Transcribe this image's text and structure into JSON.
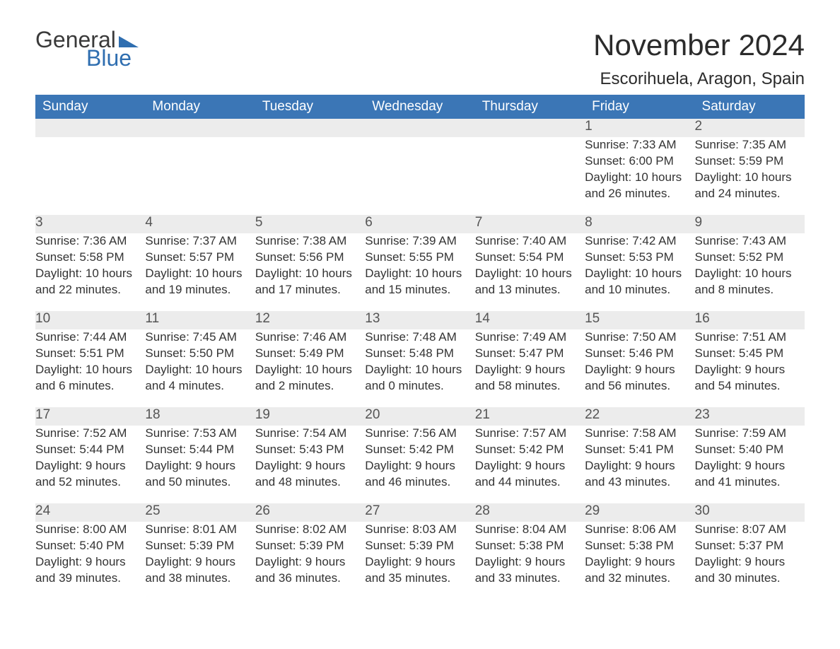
{
  "brand": {
    "word1": "General",
    "word2": "Blue"
  },
  "title": "November 2024",
  "location": "Escorihuela, Aragon, Spain",
  "colors": {
    "header_bg": "#3b76b6",
    "header_text": "#ffffff",
    "daynum_bg": "#ececec",
    "text": "#333333",
    "brand_blue": "#2f6eb0"
  },
  "typography": {
    "title_fontsize_pt": 32,
    "location_fontsize_pt": 18,
    "header_fontsize_pt": 14,
    "body_fontsize_pt": 13
  },
  "weekdays": [
    "Sunday",
    "Monday",
    "Tuesday",
    "Wednesday",
    "Thursday",
    "Friday",
    "Saturday"
  ],
  "weeks": [
    [
      null,
      null,
      null,
      null,
      null,
      {
        "day": "1",
        "sunrise": "Sunrise: 7:33 AM",
        "sunset": "Sunset: 6:00 PM",
        "daylight1": "Daylight: 10 hours",
        "daylight2": "and 26 minutes."
      },
      {
        "day": "2",
        "sunrise": "Sunrise: 7:35 AM",
        "sunset": "Sunset: 5:59 PM",
        "daylight1": "Daylight: 10 hours",
        "daylight2": "and 24 minutes."
      }
    ],
    [
      {
        "day": "3",
        "sunrise": "Sunrise: 7:36 AM",
        "sunset": "Sunset: 5:58 PM",
        "daylight1": "Daylight: 10 hours",
        "daylight2": "and 22 minutes."
      },
      {
        "day": "4",
        "sunrise": "Sunrise: 7:37 AM",
        "sunset": "Sunset: 5:57 PM",
        "daylight1": "Daylight: 10 hours",
        "daylight2": "and 19 minutes."
      },
      {
        "day": "5",
        "sunrise": "Sunrise: 7:38 AM",
        "sunset": "Sunset: 5:56 PM",
        "daylight1": "Daylight: 10 hours",
        "daylight2": "and 17 minutes."
      },
      {
        "day": "6",
        "sunrise": "Sunrise: 7:39 AM",
        "sunset": "Sunset: 5:55 PM",
        "daylight1": "Daylight: 10 hours",
        "daylight2": "and 15 minutes."
      },
      {
        "day": "7",
        "sunrise": "Sunrise: 7:40 AM",
        "sunset": "Sunset: 5:54 PM",
        "daylight1": "Daylight: 10 hours",
        "daylight2": "and 13 minutes."
      },
      {
        "day": "8",
        "sunrise": "Sunrise: 7:42 AM",
        "sunset": "Sunset: 5:53 PM",
        "daylight1": "Daylight: 10 hours",
        "daylight2": "and 10 minutes."
      },
      {
        "day": "9",
        "sunrise": "Sunrise: 7:43 AM",
        "sunset": "Sunset: 5:52 PM",
        "daylight1": "Daylight: 10 hours",
        "daylight2": "and 8 minutes."
      }
    ],
    [
      {
        "day": "10",
        "sunrise": "Sunrise: 7:44 AM",
        "sunset": "Sunset: 5:51 PM",
        "daylight1": "Daylight: 10 hours",
        "daylight2": "and 6 minutes."
      },
      {
        "day": "11",
        "sunrise": "Sunrise: 7:45 AM",
        "sunset": "Sunset: 5:50 PM",
        "daylight1": "Daylight: 10 hours",
        "daylight2": "and 4 minutes."
      },
      {
        "day": "12",
        "sunrise": "Sunrise: 7:46 AM",
        "sunset": "Sunset: 5:49 PM",
        "daylight1": "Daylight: 10 hours",
        "daylight2": "and 2 minutes."
      },
      {
        "day": "13",
        "sunrise": "Sunrise: 7:48 AM",
        "sunset": "Sunset: 5:48 PM",
        "daylight1": "Daylight: 10 hours",
        "daylight2": "and 0 minutes."
      },
      {
        "day": "14",
        "sunrise": "Sunrise: 7:49 AM",
        "sunset": "Sunset: 5:47 PM",
        "daylight1": "Daylight: 9 hours",
        "daylight2": "and 58 minutes."
      },
      {
        "day": "15",
        "sunrise": "Sunrise: 7:50 AM",
        "sunset": "Sunset: 5:46 PM",
        "daylight1": "Daylight: 9 hours",
        "daylight2": "and 56 minutes."
      },
      {
        "day": "16",
        "sunrise": "Sunrise: 7:51 AM",
        "sunset": "Sunset: 5:45 PM",
        "daylight1": "Daylight: 9 hours",
        "daylight2": "and 54 minutes."
      }
    ],
    [
      {
        "day": "17",
        "sunrise": "Sunrise: 7:52 AM",
        "sunset": "Sunset: 5:44 PM",
        "daylight1": "Daylight: 9 hours",
        "daylight2": "and 52 minutes."
      },
      {
        "day": "18",
        "sunrise": "Sunrise: 7:53 AM",
        "sunset": "Sunset: 5:44 PM",
        "daylight1": "Daylight: 9 hours",
        "daylight2": "and 50 minutes."
      },
      {
        "day": "19",
        "sunrise": "Sunrise: 7:54 AM",
        "sunset": "Sunset: 5:43 PM",
        "daylight1": "Daylight: 9 hours",
        "daylight2": "and 48 minutes."
      },
      {
        "day": "20",
        "sunrise": "Sunrise: 7:56 AM",
        "sunset": "Sunset: 5:42 PM",
        "daylight1": "Daylight: 9 hours",
        "daylight2": "and 46 minutes."
      },
      {
        "day": "21",
        "sunrise": "Sunrise: 7:57 AM",
        "sunset": "Sunset: 5:42 PM",
        "daylight1": "Daylight: 9 hours",
        "daylight2": "and 44 minutes."
      },
      {
        "day": "22",
        "sunrise": "Sunrise: 7:58 AM",
        "sunset": "Sunset: 5:41 PM",
        "daylight1": "Daylight: 9 hours",
        "daylight2": "and 43 minutes."
      },
      {
        "day": "23",
        "sunrise": "Sunrise: 7:59 AM",
        "sunset": "Sunset: 5:40 PM",
        "daylight1": "Daylight: 9 hours",
        "daylight2": "and 41 minutes."
      }
    ],
    [
      {
        "day": "24",
        "sunrise": "Sunrise: 8:00 AM",
        "sunset": "Sunset: 5:40 PM",
        "daylight1": "Daylight: 9 hours",
        "daylight2": "and 39 minutes."
      },
      {
        "day": "25",
        "sunrise": "Sunrise: 8:01 AM",
        "sunset": "Sunset: 5:39 PM",
        "daylight1": "Daylight: 9 hours",
        "daylight2": "and 38 minutes."
      },
      {
        "day": "26",
        "sunrise": "Sunrise: 8:02 AM",
        "sunset": "Sunset: 5:39 PM",
        "daylight1": "Daylight: 9 hours",
        "daylight2": "and 36 minutes."
      },
      {
        "day": "27",
        "sunrise": "Sunrise: 8:03 AM",
        "sunset": "Sunset: 5:39 PM",
        "daylight1": "Daylight: 9 hours",
        "daylight2": "and 35 minutes."
      },
      {
        "day": "28",
        "sunrise": "Sunrise: 8:04 AM",
        "sunset": "Sunset: 5:38 PM",
        "daylight1": "Daylight: 9 hours",
        "daylight2": "and 33 minutes."
      },
      {
        "day": "29",
        "sunrise": "Sunrise: 8:06 AM",
        "sunset": "Sunset: 5:38 PM",
        "daylight1": "Daylight: 9 hours",
        "daylight2": "and 32 minutes."
      },
      {
        "day": "30",
        "sunrise": "Sunrise: 8:07 AM",
        "sunset": "Sunset: 5:37 PM",
        "daylight1": "Daylight: 9 hours",
        "daylight2": "and 30 minutes."
      }
    ]
  ]
}
